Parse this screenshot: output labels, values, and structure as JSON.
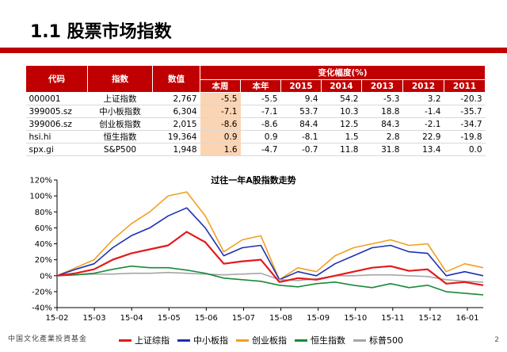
{
  "slide": {
    "title": "1.1 股票市场指数",
    "page_number": "2",
    "logo_text": "中国文化產業投資基金"
  },
  "table": {
    "headers": {
      "code": "代码",
      "name": "指数",
      "value": "数值",
      "change_group": "变化幅度(%)"
    },
    "periods": [
      "本周",
      "本年",
      "2015",
      "2014",
      "2013",
      "2012",
      "2011"
    ],
    "rows": [
      {
        "code": "000001",
        "name": "上证指数",
        "value": "2,767",
        "changes": [
          "-5.5",
          "-5.5",
          "9.4",
          "54.2",
          "-5.3",
          "3.2",
          "-20.3"
        ]
      },
      {
        "code": "399005.sz",
        "name": "中小板指数",
        "value": "6,304",
        "changes": [
          "-7.1",
          "-7.1",
          "53.7",
          "10.3",
          "18.8",
          "-1.4",
          "-35.7"
        ]
      },
      {
        "code": "399006.sz",
        "name": "创业板指数",
        "value": "2,015",
        "changes": [
          "-8.6",
          "-8.6",
          "84.4",
          "12.5",
          "84.3",
          "-2.1",
          "-34.7"
        ]
      },
      {
        "code": "hsi.hi",
        "name": "恒生指数",
        "value": "19,364",
        "changes": [
          "0.9",
          "0.9",
          "-8.1",
          "1.5",
          "2.8",
          "22.9",
          "-19.8"
        ]
      },
      {
        "code": "spx.gi",
        "name": "S&P500",
        "value": "1,948",
        "changes": [
          "1.6",
          "-4.7",
          "-0.7",
          "11.8",
          "31.8",
          "13.4",
          "0.0"
        ]
      }
    ]
  },
  "chart_data": {
    "type": "line",
    "title": "过往一年A股指数走势",
    "xlabel": "",
    "ylabel": "",
    "x_ticks": [
      "15-02",
      "15-03",
      "15-04",
      "15-05",
      "15-06",
      "15-07",
      "15-08",
      "15-09",
      "15-10",
      "15-11",
      "15-12",
      "16-01"
    ],
    "y_ticks": [
      "120%",
      "100%",
      "80%",
      "60%",
      "40%",
      "20%",
      "0%",
      "-20%",
      "-40%"
    ],
    "ylim": [
      -40,
      120
    ],
    "grid": false,
    "legend": "bottom",
    "x": [
      "15-02",
      "15-03",
      "15-03",
      "15-04",
      "15-04",
      "15-05",
      "15-05",
      "15-06",
      "15-06",
      "15-07",
      "15-07",
      "15-08",
      "15-08",
      "15-09",
      "15-09",
      "15-10",
      "15-10",
      "15-11",
      "15-11",
      "15-12",
      "15-12",
      "16-01",
      "16-01",
      "16-01"
    ],
    "series": [
      {
        "name": "上证综指",
        "color": "#e31a1c",
        "values": [
          0,
          3,
          8,
          20,
          28,
          33,
          38,
          55,
          42,
          15,
          18,
          20,
          -8,
          -3,
          -5,
          0,
          5,
          10,
          12,
          6,
          8,
          -10,
          -8,
          -12
        ]
      },
      {
        "name": "中小板指",
        "color": "#1f2fb4",
        "values": [
          0,
          8,
          15,
          35,
          50,
          60,
          75,
          85,
          60,
          25,
          35,
          38,
          -5,
          5,
          0,
          15,
          25,
          35,
          38,
          30,
          28,
          0,
          5,
          0
        ]
      },
      {
        "name": "创业板指",
        "color": "#f0a020",
        "values": [
          0,
          10,
          20,
          45,
          65,
          80,
          100,
          105,
          75,
          30,
          45,
          50,
          -5,
          10,
          5,
          25,
          35,
          40,
          45,
          38,
          40,
          5,
          15,
          10
        ]
      },
      {
        "name": "恒生指数",
        "color": "#1a8a3a",
        "values": [
          0,
          1,
          3,
          8,
          12,
          10,
          10,
          7,
          3,
          -3,
          -5,
          -7,
          -12,
          -14,
          -10,
          -8,
          -12,
          -15,
          -10,
          -15,
          -12,
          -20,
          -22,
          -24
        ]
      },
      {
        "name": "标普500",
        "color": "#a6a6a6",
        "values": [
          0,
          1,
          2,
          2,
          3,
          3,
          4,
          3,
          2,
          1,
          2,
          3,
          -5,
          -6,
          -4,
          0,
          0,
          1,
          1,
          0,
          -1,
          -5,
          -7,
          -8
        ]
      }
    ]
  }
}
